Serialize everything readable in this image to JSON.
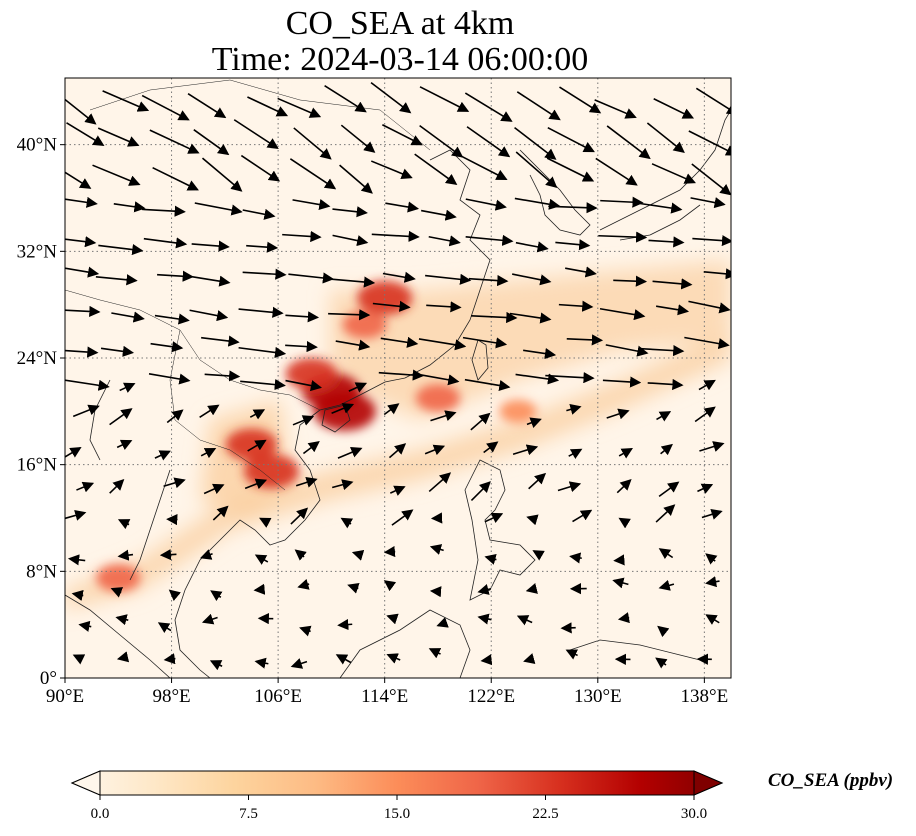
{
  "title": {
    "line1": "CO_SEA at 4km",
    "line2": "Time: 2024-03-14 06:00:00"
  },
  "axes": {
    "lon_ticks": [
      "90°E",
      "98°E",
      "106°E",
      "114°E",
      "122°E",
      "130°E",
      "138°E"
    ],
    "lat_ticks": [
      "0°",
      "8°N",
      "16°N",
      "24°N",
      "32°N",
      "40°N"
    ],
    "lon_values": [
      90,
      98,
      106,
      114,
      122,
      130,
      138
    ],
    "lat_values": [
      0,
      8,
      16,
      24,
      32,
      40
    ],
    "lon_range": [
      90,
      140
    ],
    "lat_range": [
      0,
      45
    ]
  },
  "colorbar": {
    "label": "CO_SEA (ppbv)",
    "ticks": [
      "0.0",
      "7.5",
      "15.0",
      "22.5",
      "30.0"
    ],
    "range": [
      0,
      30
    ],
    "extend": "both",
    "colormap": "OrRd",
    "colors": [
      "#fff7ec",
      "#fee8c8",
      "#fdd49e",
      "#fdbb84",
      "#fc8d59",
      "#ef6548",
      "#d7301f",
      "#b30000",
      "#7f0000"
    ]
  },
  "map": {
    "background_color": "#fff5e9",
    "gridlines": "dotted",
    "plumes": [
      {
        "lon": 114.0,
        "lat": 28.5,
        "value": 24
      },
      {
        "lon": 112.5,
        "lat": 26.5,
        "value": 18
      },
      {
        "lon": 110.0,
        "lat": 21.5,
        "value": 26
      },
      {
        "lon": 111.0,
        "lat": 20.0,
        "value": 28
      },
      {
        "lon": 108.5,
        "lat": 22.8,
        "value": 22
      },
      {
        "lon": 118.0,
        "lat": 21.0,
        "value": 18
      },
      {
        "lon": 124.0,
        "lat": 20.0,
        "value": 14
      },
      {
        "lon": 104.0,
        "lat": 17.5,
        "value": 22
      },
      {
        "lon": 105.5,
        "lat": 15.5,
        "value": 24
      },
      {
        "lon": 94.0,
        "lat": 7.5,
        "value": 18
      }
    ]
  }
}
